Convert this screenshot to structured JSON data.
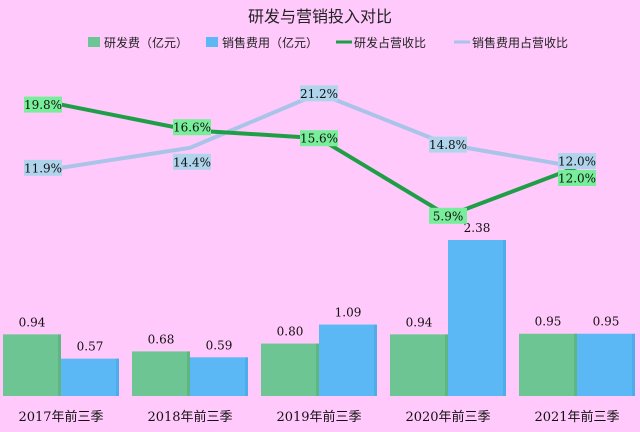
{
  "chart_data": {
    "type": "bar",
    "title": "研发与营销投入对比",
    "categories": [
      "2017年前三季",
      "2018年前三季",
      "2019年前三季",
      "2020年前三季",
      "2021年前三季"
    ],
    "series": [
      {
        "name": "研发费（亿元）",
        "kind": "bar",
        "values": [
          0.94,
          0.68,
          0.8,
          0.94,
          0.95
        ],
        "labels": [
          "0.94",
          "0.68",
          "0.80",
          "0.94",
          "0.95"
        ],
        "color": "#6cc592"
      },
      {
        "name": "销售费用（亿元）",
        "kind": "bar",
        "values": [
          0.57,
          0.59,
          1.09,
          2.38,
          0.95
        ],
        "labels": [
          "0.57",
          "0.59",
          "1.09",
          "2.38",
          "0.95"
        ],
        "color": "#5bb8f5"
      },
      {
        "name": "研发占营收比",
        "kind": "line",
        "values": [
          19.8,
          16.6,
          15.6,
          5.9,
          12.0
        ],
        "labels": [
          "19.8%",
          "16.6%",
          "15.6%",
          "5.9%",
          "12.0%"
        ],
        "color": "#1f9e48",
        "label_bg": "#78ee9a"
      },
      {
        "name": "销售费用占营收比",
        "kind": "line",
        "values": [
          11.9,
          14.4,
          21.2,
          14.8,
          12.0
        ],
        "labels": [
          "11.9%",
          "14.4%",
          "21.2%",
          "14.8%",
          "12.0%"
        ],
        "color": "#a9c4e8",
        "label_bg": "#b0d4ec"
      }
    ],
    "legend_position": "top",
    "grid": false
  }
}
